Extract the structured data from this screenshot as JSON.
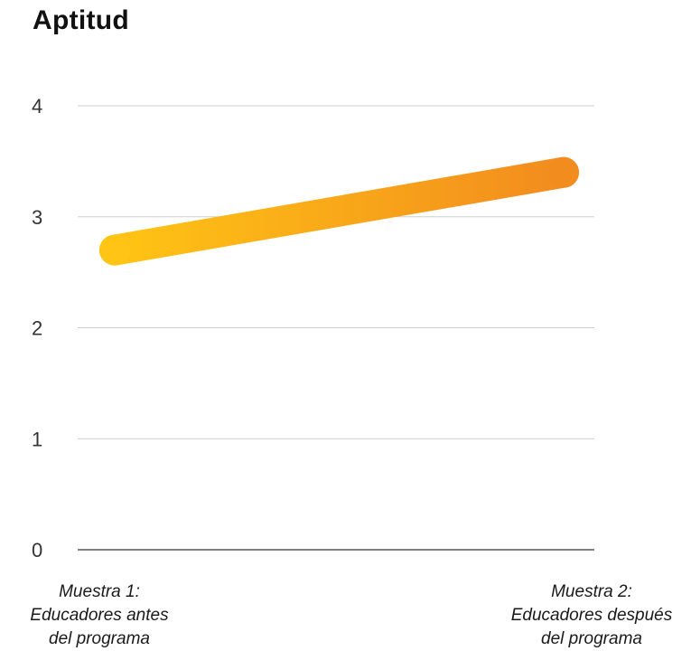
{
  "chart_data": {
    "type": "line",
    "title": "Aptitud",
    "xlabel": "",
    "ylabel": "",
    "ylim": [
      0,
      4
    ],
    "yticks": [
      "0",
      "1",
      "2",
      "3",
      "4"
    ],
    "grid": true,
    "categories": [
      [
        "Muestra 1:",
        "Educadores antes",
        "del programa"
      ],
      [
        "Muestra 2:",
        "Educadores después",
        "del programa"
      ]
    ],
    "series": [
      {
        "values": [
          2.7,
          3.4
        ],
        "color_start": "#FFC414",
        "color_end": "#F28C1E"
      }
    ]
  }
}
